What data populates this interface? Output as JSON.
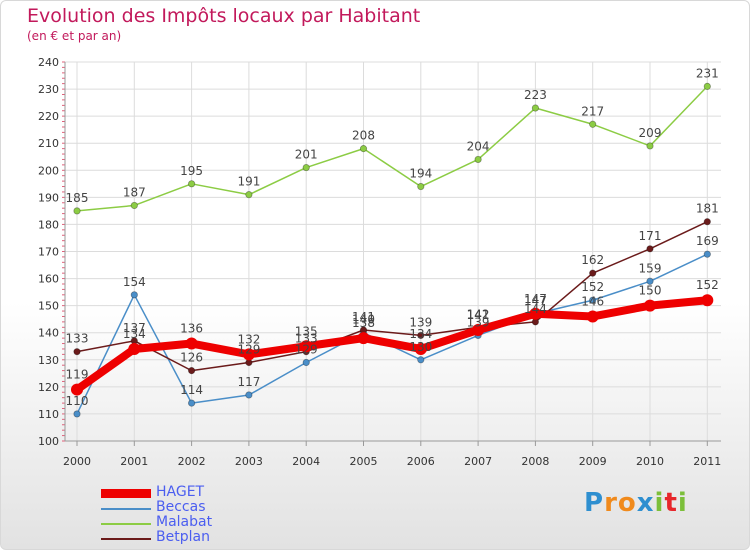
{
  "title": "Evolution des Impôts locaux par Habitant",
  "subtitle": "(en € et par an)",
  "colors": {
    "title": "#c2195b",
    "legend_text": "#4b5ef0",
    "HAGET": "#ee0000",
    "Beccas": "#4a8ec8",
    "Malabat": "#8ccc44",
    "Betplan": "#6b1b1b"
  },
  "chart_data": {
    "type": "line",
    "title": "Evolution des Impôts locaux par Habitant",
    "subtitle": "(en € et par an)",
    "categories": [
      "2000",
      "2001",
      "2002",
      "2003",
      "2004",
      "2005",
      "2006",
      "2007",
      "2008",
      "2009",
      "2010",
      "2011"
    ],
    "ylim": [
      100,
      240
    ],
    "yticks": [
      "100",
      "110",
      "120",
      "130",
      "140",
      "150",
      "160",
      "170",
      "180",
      "190",
      "200",
      "210",
      "220",
      "230",
      "240"
    ],
    "grid": true,
    "legend_position": "bottom-left",
    "series": [
      {
        "name": "HAGET",
        "values": [
          119,
          134,
          136,
          132,
          135,
          138,
          134,
          141,
          147,
          146,
          150,
          152
        ]
      },
      {
        "name": "Beccas",
        "values": [
          110,
          154,
          114,
          117,
          129,
          140,
          130,
          139,
          147,
          152,
          159,
          169
        ]
      },
      {
        "name": "Malabat",
        "values": [
          185,
          187,
          195,
          191,
          201,
          208,
          194,
          204,
          223,
          217,
          209,
          231
        ]
      },
      {
        "name": "Betplan",
        "values": [
          133,
          137,
          126,
          129,
          133,
          141,
          139,
          142,
          144,
          162,
          171,
          181
        ]
      }
    ]
  },
  "logo": {
    "text": "Proxiti",
    "letters": [
      "P",
      "r",
      "o",
      "x",
      "i",
      "t",
      "i"
    ],
    "letter_colors": [
      "#2e8fd0",
      "#f08a1c",
      "#f08a1c",
      "#2e8fd0",
      "#7cbf3a",
      "#e7262b",
      "#7cbf3a"
    ]
  }
}
